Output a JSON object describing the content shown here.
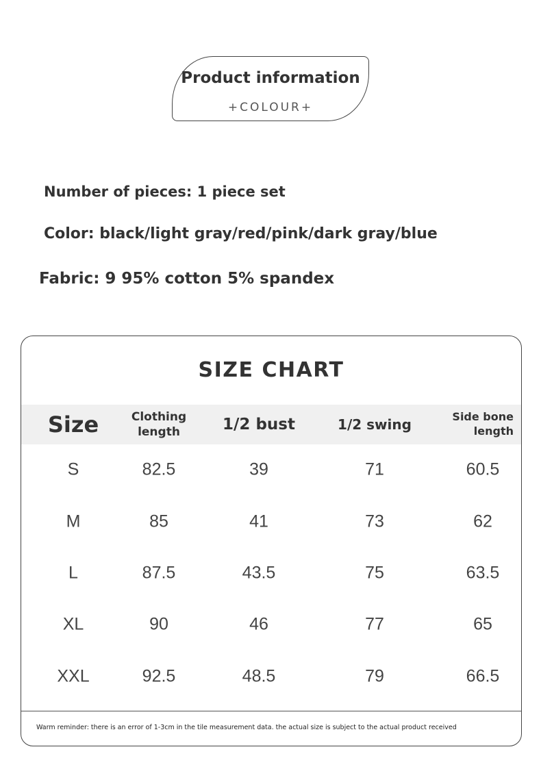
{
  "badge": {
    "title": "Product information",
    "subtitle": "+COLOUR+"
  },
  "info": [
    "Number of pieces: 1 piece set",
    "Color: black/light gray/red/pink/dark gray/blue",
    "Fabric: 9 95% cotton 5% spandex"
  ],
  "size_chart": {
    "title": "SIZE CHART",
    "headers": [
      "Size",
      "Clothing length",
      "1/2 bust",
      "1/2 swing",
      "Side bone length"
    ],
    "rows": [
      [
        "S",
        "82.5",
        "39",
        "71",
        "60.5"
      ],
      [
        "M",
        "85",
        "41",
        "73",
        "62"
      ],
      [
        "L",
        "87.5",
        "43.5",
        "75",
        "63.5"
      ],
      [
        "XL",
        "90",
        "46",
        "77",
        "65"
      ],
      [
        "XXL",
        "92.5",
        "48.5",
        "79",
        "66.5"
      ]
    ],
    "note": "Warm reminder: there is an error of 1-3cm in the tile measurement data. the actual size is subject to the actual product received"
  }
}
